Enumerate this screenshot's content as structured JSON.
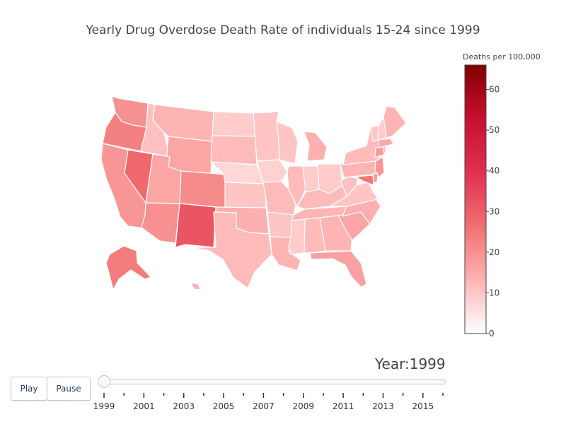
{
  "chart_data": {
    "type": "choropleth",
    "title": "Yearly Drug Overdose Death Rate of individuals 15-24 since 1999",
    "colorbar": {
      "title": "Deaths per 100,000",
      "range": [
        0,
        66
      ],
      "ticks": [
        0,
        10,
        20,
        30,
        40,
        50,
        60
      ],
      "colors": [
        "#ffffff",
        "#ffb3b3",
        "#f07070",
        "#e03050",
        "#c81030",
        "#800000"
      ]
    },
    "year": 1999,
    "states": [
      {
        "code": "WA",
        "value": 20
      },
      {
        "code": "OR",
        "value": 23
      },
      {
        "code": "CA",
        "value": 19
      },
      {
        "code": "NV",
        "value": 28
      },
      {
        "code": "ID",
        "value": 11
      },
      {
        "code": "MT",
        "value": 13
      },
      {
        "code": "WY",
        "value": 16
      },
      {
        "code": "UT",
        "value": 16
      },
      {
        "code": "AZ",
        "value": 20
      },
      {
        "code": "CO",
        "value": 21
      },
      {
        "code": "NM",
        "value": 32
      },
      {
        "code": "ND",
        "value": 9
      },
      {
        "code": "SD",
        "value": 12
      },
      {
        "code": "NE",
        "value": 7
      },
      {
        "code": "KS",
        "value": 10
      },
      {
        "code": "OK",
        "value": 14
      },
      {
        "code": "TX",
        "value": 12
      },
      {
        "code": "MN",
        "value": 10
      },
      {
        "code": "IA",
        "value": 8
      },
      {
        "code": "MO",
        "value": 12
      },
      {
        "code": "AR",
        "value": 10
      },
      {
        "code": "LA",
        "value": 13
      },
      {
        "code": "WI",
        "value": 10
      },
      {
        "code": "IL",
        "value": 12
      },
      {
        "code": "MI",
        "value": 14
      },
      {
        "code": "IN",
        "value": 9
      },
      {
        "code": "OH",
        "value": 9
      },
      {
        "code": "KY",
        "value": 12
      },
      {
        "code": "TN",
        "value": 13
      },
      {
        "code": "MS",
        "value": 9
      },
      {
        "code": "AL",
        "value": 12
      },
      {
        "code": "GA",
        "value": 13
      },
      {
        "code": "FL",
        "value": 17
      },
      {
        "code": "SC",
        "value": 16
      },
      {
        "code": "NC",
        "value": 14
      },
      {
        "code": "VA",
        "value": 10
      },
      {
        "code": "WV",
        "value": 11
      },
      {
        "code": "PA",
        "value": 13
      },
      {
        "code": "NY",
        "value": 12
      },
      {
        "code": "VT",
        "value": 10
      },
      {
        "code": "NH",
        "value": 9
      },
      {
        "code": "ME",
        "value": 13
      },
      {
        "code": "MA",
        "value": 15
      },
      {
        "code": "CT",
        "value": 18
      },
      {
        "code": "NJ",
        "value": 19
      },
      {
        "code": "DE",
        "value": 18
      },
      {
        "code": "MD",
        "value": 25
      },
      {
        "code": "AK",
        "value": 24
      },
      {
        "code": "HI",
        "value": 14
      }
    ]
  },
  "controls": {
    "year_prefix": "Year:",
    "current_year": "1999",
    "play_label": "Play",
    "pause_label": "Pause",
    "year_ticks": [
      "1999",
      "2001",
      "2003",
      "2005",
      "2007",
      "2009",
      "2011",
      "2013",
      "2015"
    ],
    "years": [
      1999,
      2000,
      2001,
      2002,
      2003,
      2004,
      2005,
      2006,
      2007,
      2008,
      2009,
      2010,
      2011,
      2012,
      2013,
      2014,
      2015,
      2016
    ]
  }
}
